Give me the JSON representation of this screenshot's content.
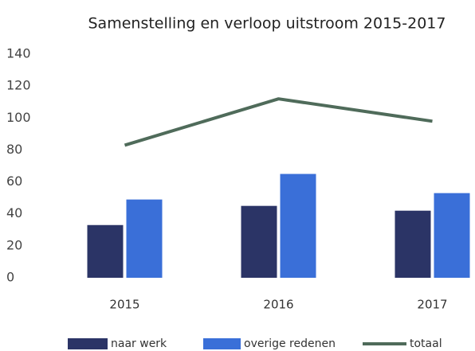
{
  "chart_data": {
    "type": "bar",
    "title": "Samenstelling en verloop uitstroom 2015-2017",
    "categories": [
      "2015",
      "2016",
      "2017"
    ],
    "series": [
      {
        "name": "naar werk",
        "color": "#2b3466",
        "values": [
          33,
          45,
          42
        ]
      },
      {
        "name": "overige redenen",
        "color": "#3a6fd8",
        "values": [
          49,
          65,
          53
        ]
      },
      {
        "name": "totaal",
        "color": "#4f6b5a",
        "type": "line",
        "values": [
          83,
          112,
          98
        ]
      }
    ],
    "ylim": [
      0,
      140
    ],
    "yticks": [
      0,
      20,
      40,
      60,
      80,
      100,
      120,
      140
    ],
    "grid": false,
    "legend": "bottom"
  }
}
